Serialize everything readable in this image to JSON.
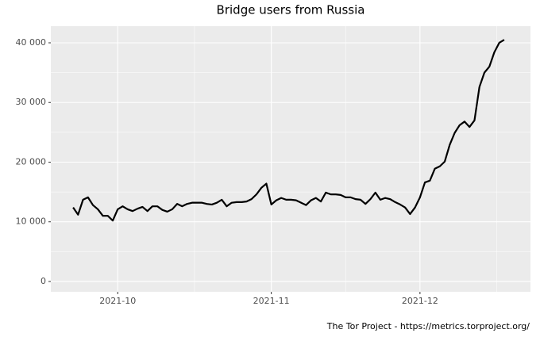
{
  "chart_data": {
    "type": "line",
    "title": "Bridge users from Russia",
    "caption": "The Tor Project - https://metrics.torproject.org/",
    "series": [
      {
        "color": "#000000",
        "values": [
          12400,
          11200,
          13700,
          14100,
          12800,
          12100,
          11000,
          11000,
          10200,
          12100,
          12600,
          12100,
          11800,
          12200,
          12500,
          11800,
          12600,
          12600,
          12000,
          11700,
          12100,
          13000,
          12600,
          13000,
          13200,
          13200,
          13200,
          13000,
          12900,
          13200,
          13700,
          12600,
          13200,
          13300,
          13300,
          13400,
          13800,
          14600,
          15700,
          16400,
          12900,
          13600,
          14000,
          13700,
          13700,
          13600,
          13200,
          12800,
          13600,
          14000,
          13400,
          14900,
          14600,
          14600,
          14500,
          14100,
          14100,
          13800,
          13700,
          13000,
          13800,
          14900,
          13700,
          14000,
          13800,
          13300,
          12900,
          12400,
          11300,
          12400,
          14100,
          16600,
          16900,
          18900,
          19300,
          20100,
          22900,
          24900,
          26200,
          26800,
          25900,
          27000,
          32600,
          35000,
          36000,
          38400,
          40000,
          40500
        ]
      }
    ],
    "xlim": [
      -4.5,
      92.3
    ],
    "xticks": [
      {
        "value": 9,
        "label": "2021-10"
      },
      {
        "value": 40,
        "label": "2021-11"
      },
      {
        "value": 70,
        "label": "2021-12"
      }
    ],
    "xminorticks": [
      -6.5,
      24.5,
      55,
      85.5
    ],
    "ylim": [
      -1730,
      42790
    ],
    "yticks": [
      {
        "value": 0,
        "label": "0"
      },
      {
        "value": 10000,
        "label": "10 000"
      },
      {
        "value": 20000,
        "label": "20 000"
      },
      {
        "value": 30000,
        "label": "30 000"
      },
      {
        "value": 40000,
        "label": "40 000"
      }
    ],
    "yminorticks": [
      5000,
      15000,
      25000,
      35000
    ],
    "grid": true
  }
}
